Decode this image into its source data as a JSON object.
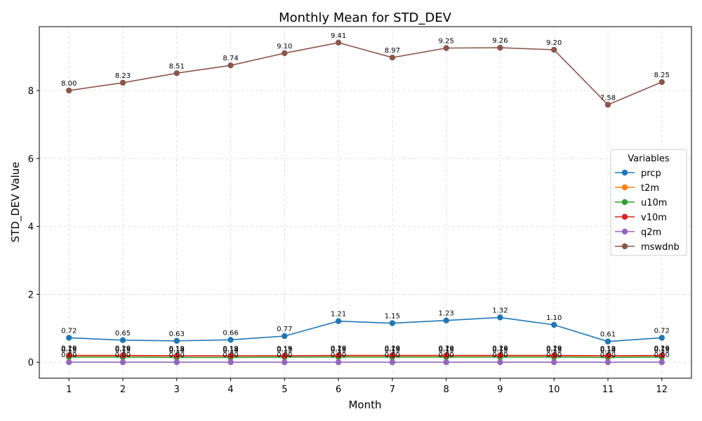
{
  "chart_data": {
    "type": "line",
    "title": "Monthly Mean for STD_DEV",
    "xlabel": "Month",
    "ylabel": "STD_DEV Value",
    "x": [
      1,
      2,
      3,
      4,
      5,
      6,
      7,
      8,
      9,
      10,
      11,
      12
    ],
    "xlim": [
      0.45,
      12.55
    ],
    "ylim": [
      -0.47,
      9.88
    ],
    "yticks": [
      0,
      2,
      4,
      6,
      8
    ],
    "grid": true,
    "legend": {
      "title": "Variables",
      "placement": "center-right"
    },
    "series": [
      {
        "name": "prcp",
        "color": "#1f77b4",
        "values": [
          0.72,
          0.65,
          0.63,
          0.66,
          0.77,
          1.21,
          1.15,
          1.23,
          1.32,
          1.1,
          0.61,
          0.72
        ],
        "labels": [
          "0.72",
          "0.65",
          "0.63",
          "0.66",
          "0.77",
          "1.21",
          "1.15",
          "1.23",
          "1.32",
          "1.10",
          "0.61",
          "0.72"
        ]
      },
      {
        "name": "t2m",
        "color": "#ff7f0e",
        "values": [
          0.19,
          0.19,
          0.18,
          0.18,
          0.19,
          0.19,
          0.19,
          0.19,
          0.19,
          0.19,
          0.18,
          0.19
        ],
        "labels": [
          "0.19",
          "0.19",
          "0.18",
          "0.18",
          "0.19",
          "0.19",
          "0.19",
          "0.19",
          "0.19",
          "0.19",
          "0.18",
          "0.19"
        ]
      },
      {
        "name": "u10m",
        "color": "#2ca02c",
        "values": [
          0.15,
          0.15,
          0.14,
          0.14,
          0.15,
          0.15,
          0.15,
          0.15,
          0.15,
          0.15,
          0.14,
          0.15
        ],
        "labels": [
          "0.15",
          "0.15",
          "0.14",
          "0.14",
          "0.15",
          "0.15",
          "0.15",
          "0.15",
          "0.15",
          "0.15",
          "0.14",
          "0.15"
        ]
      },
      {
        "name": "v10m",
        "color": "#d62728",
        "values": [
          0.2,
          0.2,
          0.19,
          0.19,
          0.19,
          0.2,
          0.2,
          0.2,
          0.2,
          0.2,
          0.19,
          0.2
        ],
        "labels": [
          "0.20",
          "0.20",
          "0.19",
          "0.19",
          "0.19",
          "0.20",
          "0.20",
          "0.20",
          "0.20",
          "0.20",
          "0.19",
          "0.20"
        ]
      },
      {
        "name": "q2m",
        "color": "#9467bd",
        "values": [
          0.0,
          0.0,
          0.0,
          0.0,
          0.0,
          0.0,
          0.0,
          0.0,
          0.0,
          0.0,
          0.0,
          0.0
        ],
        "labels": [
          "0.00",
          "0.00",
          "0.00",
          "0.00",
          "0.00",
          "0.00",
          "0.00",
          "0.00",
          "0.00",
          "0.00",
          "0.00",
          "0.00"
        ]
      },
      {
        "name": "mswdnb",
        "color": "#8c564b",
        "values": [
          8.0,
          8.23,
          8.51,
          8.74,
          9.1,
          9.41,
          8.97,
          9.25,
          9.26,
          9.2,
          7.58,
          8.25
        ],
        "labels": [
          "8.00",
          "8.23",
          "8.51",
          "8.74",
          "9.10",
          "9.41",
          "8.97",
          "9.25",
          "9.26",
          "9.20",
          "7.58",
          "8.25"
        ]
      }
    ]
  }
}
